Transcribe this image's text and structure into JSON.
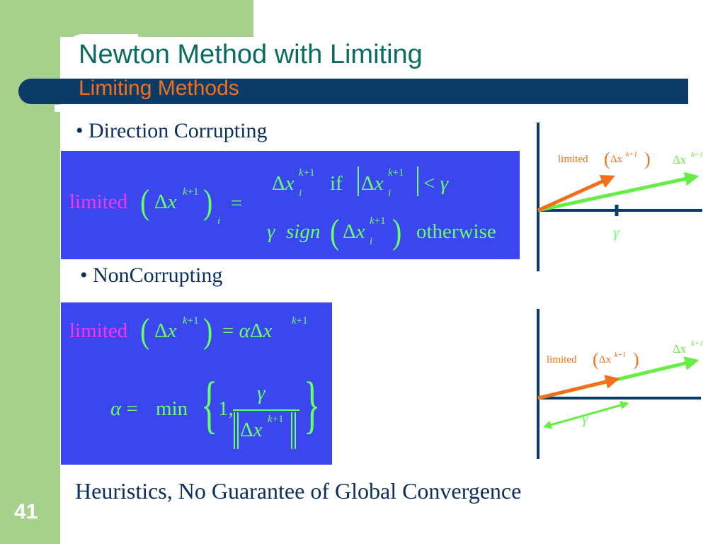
{
  "slide": {
    "title": "Newton Method with Limiting",
    "subtitle": "Limiting Methods",
    "bullet_1": "• Direction Corrupting",
    "bullet_2": "• NonCorrupting",
    "footer": "Heuristics, No Guarantee of Global Convergence",
    "slide_number": "41"
  },
  "equations": {
    "limited_word": "limited",
    "equals": "=",
    "case1_if": "if",
    "case2_sign": "sign",
    "case2_otherwise": "otherwise",
    "min_word": "min",
    "one": "1,"
  },
  "diagram": {
    "limited_label": "limited",
    "delta_x_label": "Δx",
    "sup_label": "k+1",
    "gamma_label": "γ"
  },
  "colors": {
    "green_frame": "#a8d08d",
    "navy_bar": "#0b3b66",
    "title_teal": "#0b6a62",
    "subtitle_orange": "#f36f1c",
    "equation_box_blue": "#3c46ee",
    "equation_green": "#67ff67",
    "limited_magenta": "#ff33ff",
    "arrow_orange": "#f36f1c",
    "arrow_green": "#66ee44"
  }
}
